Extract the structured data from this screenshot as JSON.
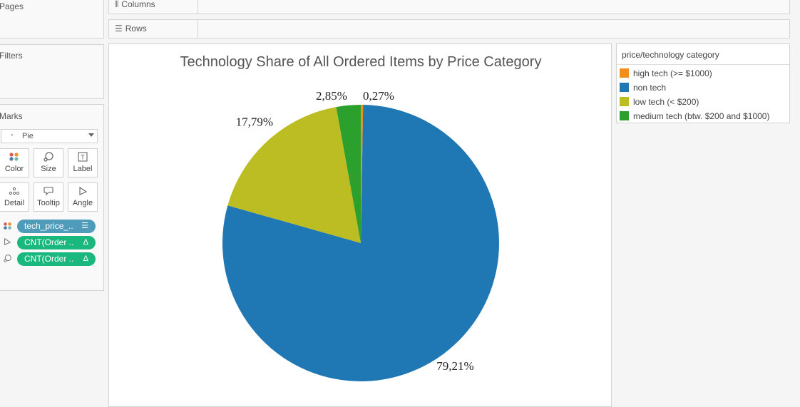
{
  "panels": {
    "pages": "Pages",
    "filters": "Filters",
    "marks": "Marks"
  },
  "marks": {
    "type": "Pie",
    "buttons": [
      {
        "id": "color",
        "label": "Color",
        "icon": "color-dots-icon"
      },
      {
        "id": "size",
        "label": "Size",
        "icon": "size-icon"
      },
      {
        "id": "label",
        "label": "Label",
        "icon": "label-text-icon"
      },
      {
        "id": "detail",
        "label": "Detail",
        "icon": "detail-dots-icon"
      },
      {
        "id": "tooltip",
        "label": "Tooltip",
        "icon": "tooltip-icon"
      },
      {
        "id": "angle",
        "label": "Angle",
        "icon": "angle-icon"
      }
    ],
    "pills": [
      {
        "text": "tech_price_..",
        "color": "#4e9bba",
        "icon": "color-dots-icon"
      },
      {
        "text": "CNT(Order ..",
        "color": "#1ab87e",
        "icon": "angle-icon"
      },
      {
        "text": "CNT(Order ..",
        "color": "#1ab87e",
        "icon": "size-icon"
      }
    ]
  },
  "shelves": {
    "columns": "Columns",
    "rows": "Rows"
  },
  "legend": {
    "title": "price/technology category",
    "items": [
      {
        "label": "high tech (>= $1000)",
        "color": "#f28e1c"
      },
      {
        "label": "non tech",
        "color": "#1f77b4"
      },
      {
        "label": "low tech (< $200)",
        "color": "#bcbd22"
      },
      {
        "label": "medium tech (btw. $200 and $1000)",
        "color": "#2ca02c"
      }
    ]
  },
  "chart_data": {
    "type": "pie",
    "title": "Technology Share of All Ordered Items by Price Category",
    "slices": [
      {
        "category": "high tech (>= $1000)",
        "value": 0.27,
        "label": "0,27%",
        "color": "#f28e1c"
      },
      {
        "category": "non tech",
        "value": 79.21,
        "label": "79,21%",
        "color": "#1f77b4"
      },
      {
        "category": "low tech (< $200)",
        "value": 17.79,
        "label": "17,79%",
        "color": "#bcbd22"
      },
      {
        "category": "medium tech (btw. $200 and $1000)",
        "value": 2.85,
        "label": "2,85%",
        "color": "#2ca02c"
      }
    ],
    "legend_position": "right"
  }
}
